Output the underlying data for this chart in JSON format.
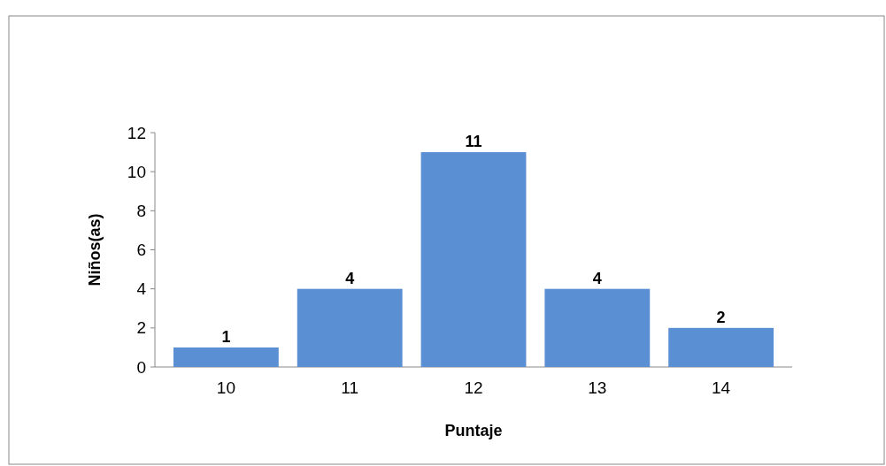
{
  "chart_data": {
    "type": "bar",
    "xlabel": "Puntaje",
    "ylabel": "Niños(as)",
    "categories": [
      "10",
      "11",
      "12",
      "13",
      "14"
    ],
    "values": [
      1,
      4,
      11,
      4,
      2
    ],
    "color": "#5b8fd3",
    "ylim": [
      0,
      12
    ],
    "yticks": [
      0,
      2,
      4,
      6,
      8,
      10,
      12
    ],
    "grid": false,
    "data_labels": true
  }
}
